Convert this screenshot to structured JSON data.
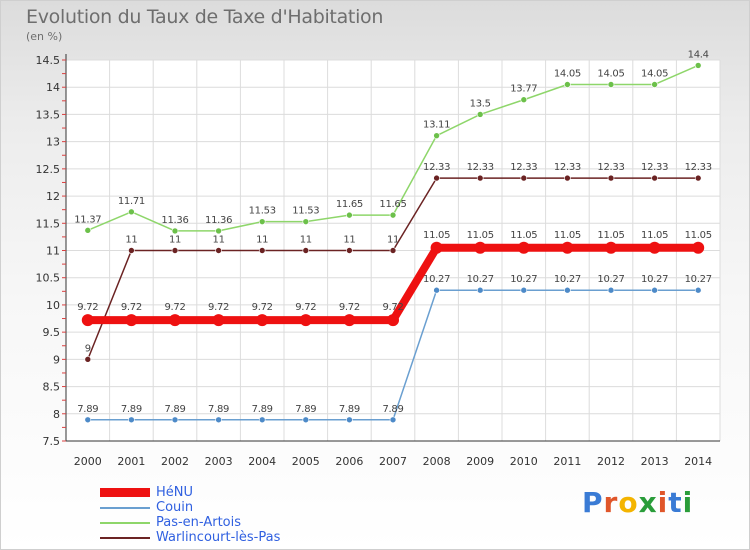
{
  "header": {
    "title": "Evolution du Taux de Taxe d'Habitation",
    "unit": "(en %)"
  },
  "logo": {
    "text": "Proxiti",
    "colors": [
      "#3a7bd5",
      "#e0562a",
      "#f4b400",
      "#2a9d3a",
      "#e0562a",
      "#3a7bd5",
      "#2a9d3a"
    ]
  },
  "chart_data": {
    "type": "line",
    "title": "Evolution du Taux de Taxe d'Habitation",
    "ylabel": "(en %)",
    "xlabel": "",
    "ylim": [
      7.5,
      14.5
    ],
    "yticks": [
      "7.5",
      "8",
      "8.5",
      "9",
      "9.5",
      "10",
      "10.5",
      "11",
      "11.5",
      "12",
      "12.5",
      "13",
      "13.5",
      "14",
      "14.5"
    ],
    "x": [
      "2000",
      "2001",
      "2002",
      "2003",
      "2004",
      "2005",
      "2006",
      "2007",
      "2008",
      "2009",
      "2010",
      "2011",
      "2012",
      "2013",
      "2014"
    ],
    "grid": true,
    "legend_position": "bottom-left",
    "series": [
      {
        "name": "Pas-en-Artois",
        "color": "#8ed66a",
        "marker": "#6cc04a",
        "values": [
          11.37,
          11.71,
          11.36,
          11.36,
          11.53,
          11.53,
          11.65,
          11.65,
          13.11,
          13.5,
          13.77,
          14.05,
          14.05,
          14.05,
          14.4
        ],
        "labels": [
          "11.37",
          "11.71",
          "11.36",
          "11.36",
          "11.53",
          "11.53",
          "11.65",
          "11.65",
          "13.11",
          "13.5",
          "13.77",
          "14.05",
          "14.05",
          "14.05",
          "14.4"
        ]
      },
      {
        "name": "Warlincourt-lès-Pas",
        "color": "#6b2323",
        "marker": "#6b2323",
        "values": [
          9,
          11,
          11,
          11,
          11,
          11,
          11,
          11,
          12.33,
          12.33,
          12.33,
          12.33,
          12.33,
          12.33,
          12.33
        ],
        "labels": [
          "9",
          "11",
          "11",
          "11",
          "11",
          "11",
          "11",
          "11",
          "12.33",
          "12.33",
          "12.33",
          "12.33",
          "12.33",
          "12.33",
          "12.33"
        ]
      },
      {
        "name": "Couin",
        "color": "#6a9fd0",
        "marker": "#4d8ac8",
        "values": [
          7.89,
          7.89,
          7.89,
          7.89,
          7.89,
          7.89,
          7.89,
          7.89,
          10.27,
          10.27,
          10.27,
          10.27,
          10.27,
          10.27,
          10.27
        ],
        "labels": [
          "7.89",
          "7.89",
          "7.89",
          "7.89",
          "7.89",
          "7.89",
          "7.89",
          "7.89",
          "10.27",
          "10.27",
          "10.27",
          "10.27",
          "10.27",
          "10.27",
          "10.27"
        ]
      },
      {
        "name": "HéNU",
        "color": "#ee1111",
        "marker": "#ee1111",
        "values": [
          9.72,
          9.72,
          9.72,
          9.72,
          9.72,
          9.72,
          9.72,
          9.72,
          11.05,
          11.05,
          11.05,
          11.05,
          11.05,
          11.05,
          11.05
        ],
        "labels": [
          "9.72",
          "9.72",
          "9.72",
          "9.72",
          "9.72",
          "9.72",
          "9.72",
          "9.72",
          "11.05",
          "11.05",
          "11.05",
          "11.05",
          "11.05",
          "11.05",
          "11.05"
        ]
      }
    ],
    "legend": [
      "HéNU",
      "Couin",
      "Pas-en-Artois",
      "Warlincourt-lès-Pas"
    ]
  }
}
